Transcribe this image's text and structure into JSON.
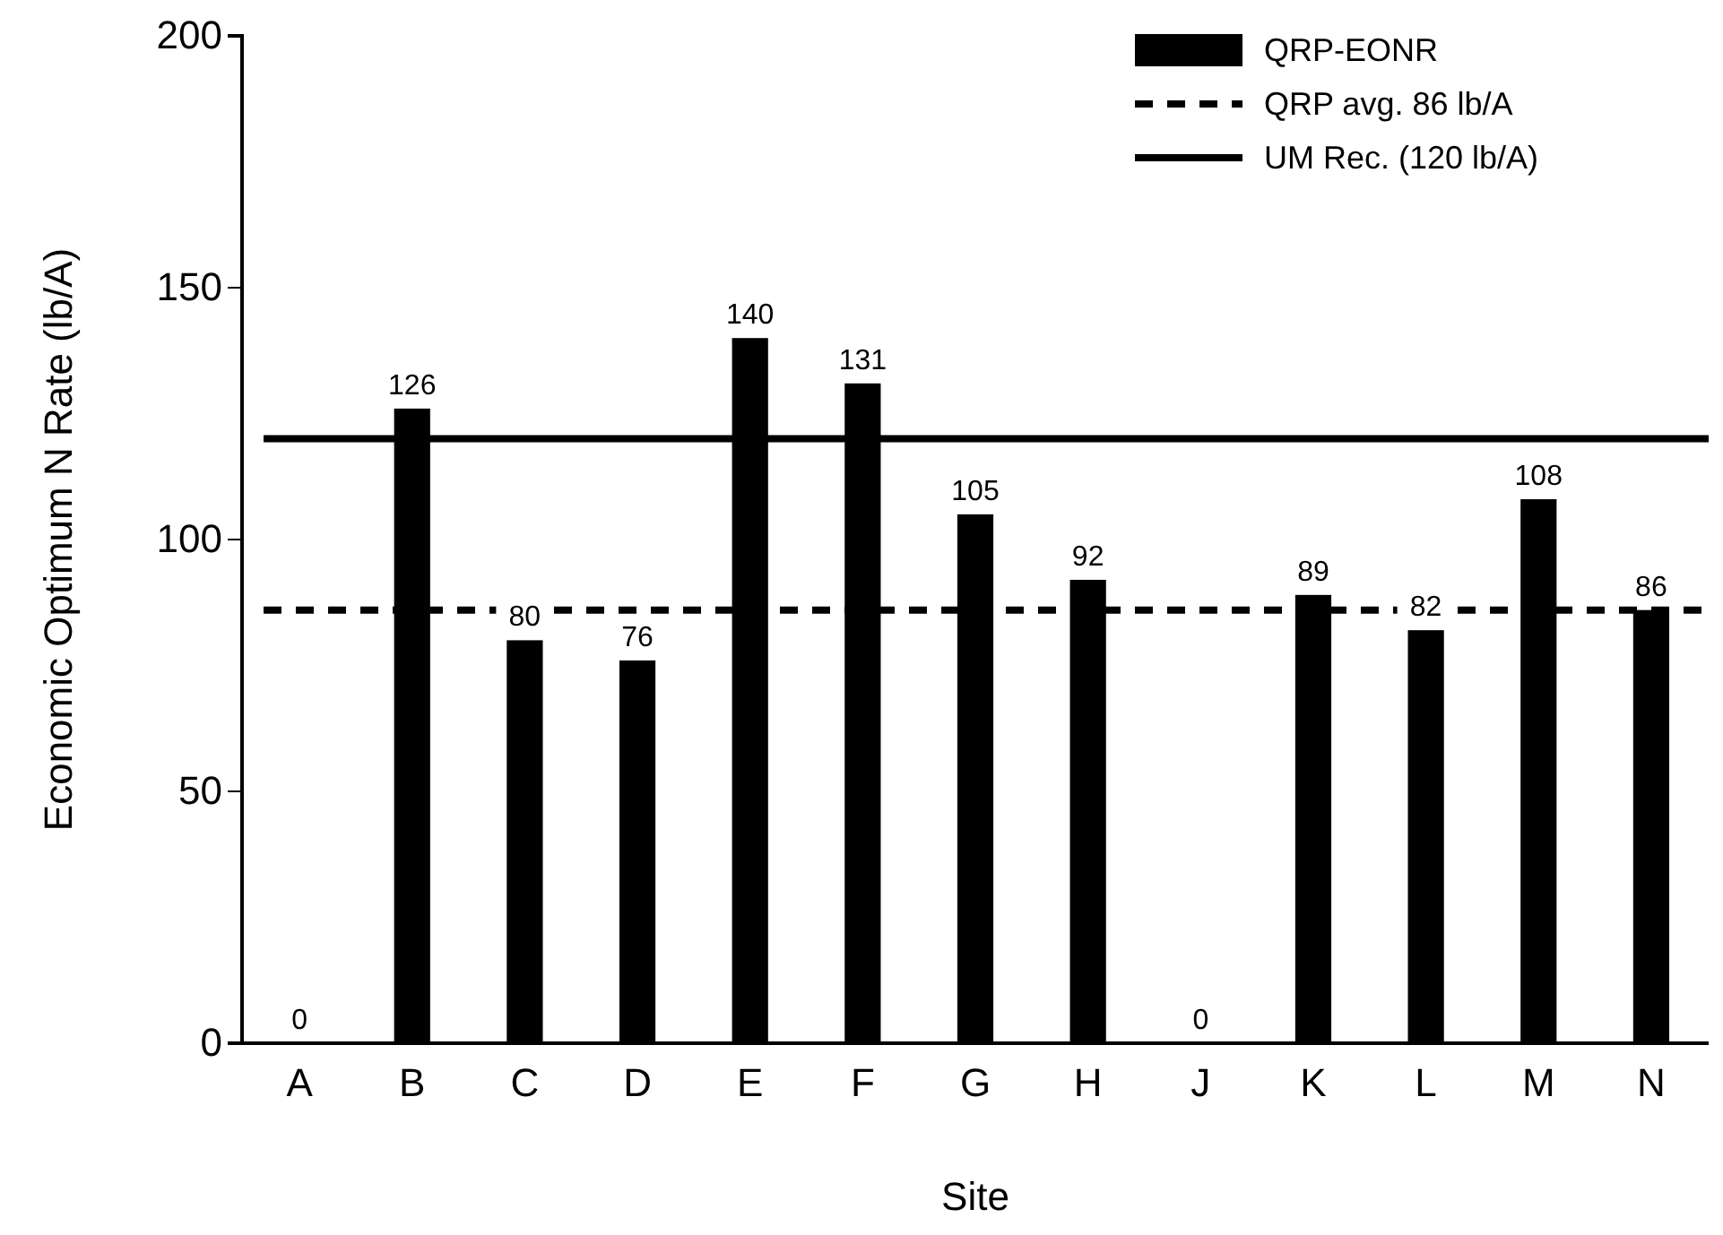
{
  "chart_data": {
    "type": "bar",
    "xlabel": "Site",
    "ylabel": "Economic Optimum N Rate (lb/A)",
    "categories": [
      "A",
      "B",
      "C",
      "D",
      "E",
      "F",
      "G",
      "H",
      "J",
      "K",
      "L",
      "M",
      "N"
    ],
    "series": [
      {
        "name": "QRP-EONR",
        "color": "#000000",
        "values": [
          0,
          126,
          80,
          76,
          140,
          131,
          105,
          92,
          0,
          89,
          82,
          108,
          86
        ]
      }
    ],
    "ylim": [
      0,
      200
    ],
    "yticks": [
      0,
      50,
      100,
      150,
      200
    ],
    "ref_lines": [
      {
        "axis": "y",
        "value": 86,
        "label": "QRP avg. 86 lb/A",
        "color": "#000000",
        "line_style": "dashed"
      },
      {
        "axis": "y",
        "value": 120,
        "label": "UM Rec. (120 lb/A)",
        "color": "#000000",
        "line_style": "solid"
      }
    ],
    "data_labels": true,
    "legend": "top right",
    "grid": false
  }
}
